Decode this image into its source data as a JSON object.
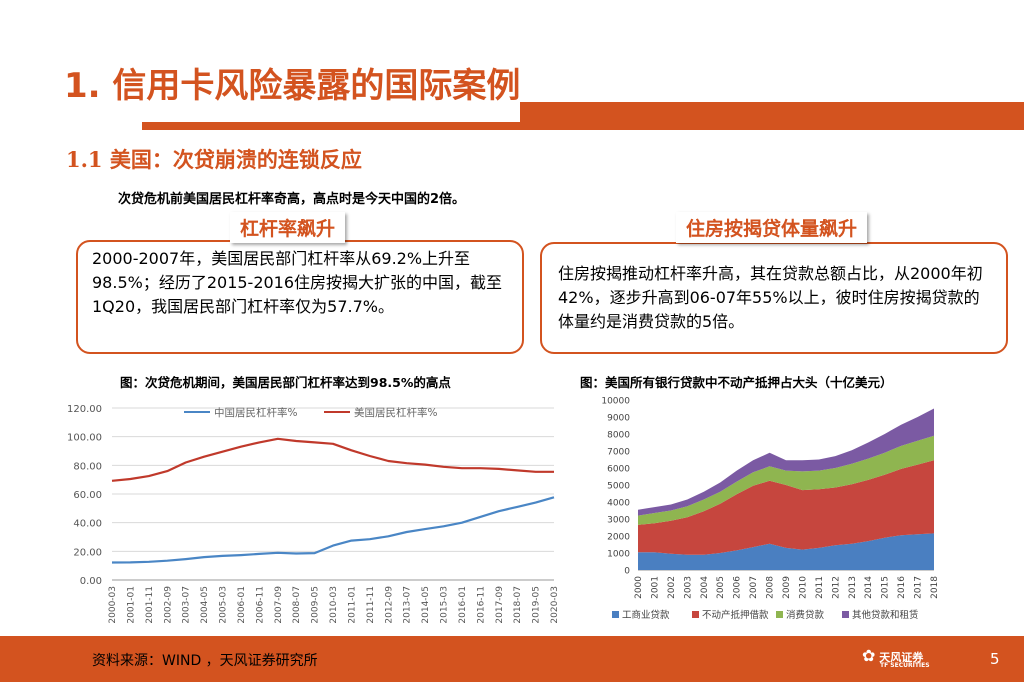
{
  "slide": {
    "title": "1. 信用卡风险暴露的国际案例",
    "subtitle": "1.1 美国：次贷崩溃的连锁反应",
    "intro": "次贷危机前美国居民杠杆率奇高，高点时是今天中国的2倍。",
    "left_tag": "杠杆率飙升",
    "left_box": "2000-2007年，美国居民部门杠杆率从69.2%上升至98.5%；经历了2015-2016住房按揭大扩张的中国，截至1Q20，我国居民部门杠杆率仅为57.7%。",
    "right_tag": "住房按揭贷体量飙升",
    "right_box": "住房按揭推动杠杆率升高，其在贷款总额占比，从2000年初42%，逐步升高到06-07年55%以上，彼时住房按揭贷款的体量约是消费贷款的5倍。",
    "left_caption": "图：次贷危机期间，美国居民部门杠杆率达到98.5%的高点",
    "right_caption": "图：美国所有银行贷款中不动产抵押占大头（十亿美元）",
    "source": "资料来源：WIND ，天风证券研究所",
    "logo_text": "天风证券",
    "logo_sub": "TF SECURITIES",
    "page_number": "5",
    "colors": {
      "accent": "#d3531f",
      "china": "#4a86c5",
      "us": "#c0392b"
    }
  },
  "chart_data": [
    {
      "type": "line",
      "title": "图：次贷危机期间，美国居民部门杠杆率达到98.5%的高点",
      "ylim": [
        0,
        120
      ],
      "yticks": [
        "0.00",
        "20.00",
        "40.00",
        "60.00",
        "80.00",
        "100.00",
        "120.00"
      ],
      "x_ticks": [
        "2000-03",
        "2001-01",
        "2001-11",
        "2002-09",
        "2003-07",
        "2004-05",
        "2005-03",
        "2006-01",
        "2006-11",
        "2007-09",
        "2008-07",
        "2009-05",
        "2010-03",
        "2011-01",
        "2011-11",
        "2012-09",
        "2013-07",
        "2014-05",
        "2015-03",
        "2016-01",
        "2016-11",
        "2017-09",
        "2018-07",
        "2019-05",
        "2020-03"
      ],
      "series": [
        {
          "name": "中国居民杠杆率%",
          "color": "#4a86c5",
          "values": [
            12.2,
            12.3,
            12.7,
            13.5,
            14.6,
            16.0,
            16.8,
            17.4,
            18.2,
            19.0,
            18.5,
            18.8,
            24.0,
            27.5,
            28.5,
            30.5,
            33.5,
            35.5,
            37.5,
            40.0,
            44.0,
            48.0,
            51.0,
            54.0,
            57.7
          ]
        },
        {
          "name": "美国居民杠杆率%",
          "color": "#c0392b",
          "values": [
            69.2,
            70.5,
            72.5,
            76.0,
            82.0,
            86.0,
            89.5,
            93.0,
            96.0,
            98.5,
            97.0,
            96.0,
            95.0,
            90.5,
            86.5,
            83.0,
            81.5,
            80.5,
            79.0,
            78.0,
            78.0,
            77.5,
            76.5,
            75.5,
            75.5
          ]
        }
      ],
      "legend": "top"
    },
    {
      "type": "area",
      "title": "图：美国所有银行贷款中不动产抵押占大头（十亿美元）",
      "ylim": [
        0,
        10000
      ],
      "yticks": [
        "0",
        "1000",
        "2000",
        "3000",
        "4000",
        "5000",
        "6000",
        "7000",
        "8000",
        "9000",
        "10000"
      ],
      "categories": [
        "2000",
        "2001",
        "2002",
        "2003",
        "2004",
        "2005",
        "2006",
        "2007",
        "2008",
        "2009",
        "2010",
        "2011",
        "2012",
        "2013",
        "2014",
        "2015",
        "2016",
        "2017",
        "2018"
      ],
      "series": [
        {
          "name": "工商业贷款",
          "color": "#4a7fc1",
          "values": [
            1050,
            1050,
            950,
            900,
            900,
            1000,
            1150,
            1350,
            1550,
            1300,
            1200,
            1300,
            1450,
            1550,
            1700,
            1900,
            2050,
            2100,
            2150
          ]
        },
        {
          "name": "不动产抵押借款",
          "color": "#c6463e",
          "values": [
            1600,
            1700,
            1950,
            2200,
            2550,
            2900,
            3300,
            3600,
            3700,
            3700,
            3500,
            3450,
            3400,
            3500,
            3600,
            3700,
            3900,
            4100,
            4300
          ]
        },
        {
          "name": "消费贷款",
          "color": "#8fb550",
          "values": [
            550,
            600,
            600,
            650,
            700,
            700,
            750,
            800,
            850,
            850,
            1100,
            1100,
            1150,
            1200,
            1250,
            1300,
            1350,
            1400,
            1450
          ]
        },
        {
          "name": "其他贷款和租赁",
          "color": "#7b5aa3",
          "values": [
            350,
            350,
            350,
            400,
            450,
            550,
            650,
            700,
            800,
            600,
            650,
            650,
            700,
            800,
            950,
            1100,
            1250,
            1400,
            1600
          ]
        }
      ],
      "legend": "bottom"
    }
  ]
}
